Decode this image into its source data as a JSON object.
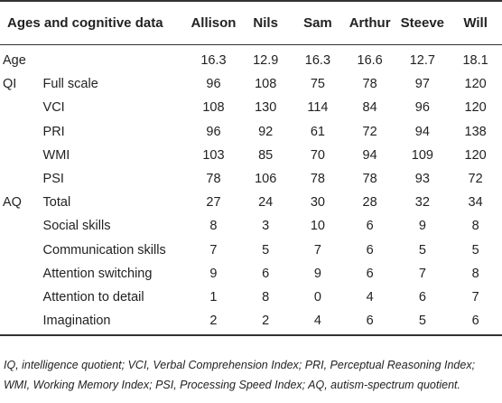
{
  "header": {
    "title": "Ages and cognitive data",
    "participants": [
      "Allison",
      "Nils",
      "Sam",
      "Arthur",
      "Steeve",
      "Will"
    ]
  },
  "rows": [
    {
      "group": "Age",
      "label": "",
      "values": [
        "16.3",
        "12.9",
        "16.3",
        "16.6",
        "12.7",
        "18.1"
      ]
    },
    {
      "group": "QI",
      "label": "Full scale",
      "values": [
        "96",
        "108",
        "75",
        "78",
        "97",
        "120"
      ]
    },
    {
      "group": "",
      "label": "VCI",
      "values": [
        "108",
        "130",
        "114",
        "84",
        "96",
        "120"
      ]
    },
    {
      "group": "",
      "label": "PRI",
      "values": [
        "96",
        "92",
        "61",
        "72",
        "94",
        "138"
      ]
    },
    {
      "group": "",
      "label": "WMI",
      "values": [
        "103",
        "85",
        "70",
        "94",
        "109",
        "120"
      ]
    },
    {
      "group": "",
      "label": "PSI",
      "values": [
        "78",
        "106",
        "78",
        "78",
        "93",
        "72"
      ]
    },
    {
      "group": "AQ",
      "label": "Total",
      "values": [
        "27",
        "24",
        "30",
        "28",
        "32",
        "34"
      ]
    },
    {
      "group": "",
      "label": "Social skills",
      "values": [
        "8",
        "3",
        "10",
        "6",
        "9",
        "8"
      ]
    },
    {
      "group": "",
      "label": "Communication skills",
      "values": [
        "7",
        "5",
        "7",
        "6",
        "5",
        "5"
      ]
    },
    {
      "group": "",
      "label": "Attention switching",
      "values": [
        "9",
        "6",
        "9",
        "6",
        "7",
        "8"
      ]
    },
    {
      "group": "",
      "label": "Attention to detail",
      "values": [
        "1",
        "8",
        "0",
        "4",
        "6",
        "7"
      ]
    },
    {
      "group": "",
      "label": "Imagination",
      "values": [
        "2",
        "2",
        "4",
        "6",
        "5",
        "6"
      ]
    }
  ],
  "footnote": "IQ, intelligence quotient; VCI, Verbal Comprehension Index; PRI, Perceptual Reasoning Index; WMI, Working Memory Index; PSI, Processing Speed Index; AQ, autism-spectrum quotient."
}
